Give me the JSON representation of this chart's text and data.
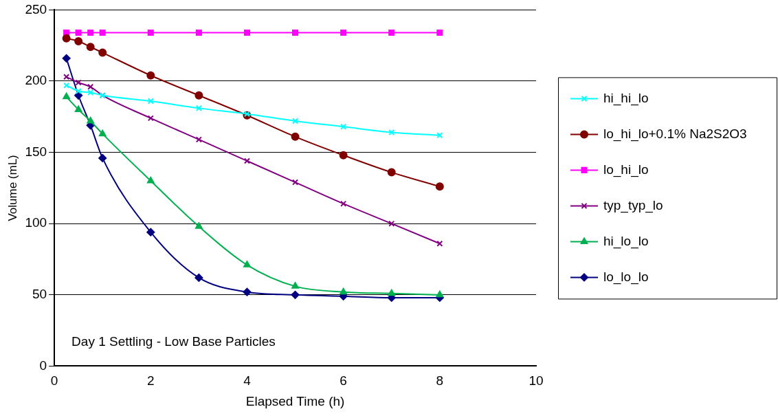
{
  "chart_data": {
    "type": "line",
    "xlabel": "Elapsed Time (h)",
    "ylabel": "Volume (mL)",
    "x": [
      0.25,
      0.5,
      0.75,
      1,
      2,
      3,
      4,
      5,
      6,
      7,
      8
    ],
    "xlim": [
      0,
      10
    ],
    "xticks": [
      0,
      2,
      4,
      6,
      8,
      10
    ],
    "ylim": [
      0,
      250
    ],
    "yticks": [
      0,
      50,
      100,
      150,
      200,
      250
    ],
    "grid": "y",
    "legend": "right",
    "annotations": [
      "Day 1 Settling - Low Base Particles"
    ],
    "series": [
      {
        "name": "hi_hi_lo",
        "color": "#00ffff",
        "marker": "cross",
        "values": [
          197,
          193,
          192,
          190,
          186,
          181,
          177,
          172,
          168,
          164,
          162
        ]
      },
      {
        "name": "lo_hi_lo+0.1% Na2S2O3",
        "color": "#800000",
        "marker": "circle",
        "values": [
          230,
          228,
          224,
          220,
          204,
          190,
          176,
          161,
          148,
          136,
          126
        ]
      },
      {
        "name": "lo_hi_lo",
        "color": "#ff00ff",
        "marker": "square",
        "values": [
          234,
          234,
          234,
          234,
          234,
          234,
          234,
          234,
          234,
          234,
          234
        ]
      },
      {
        "name": "typ_typ_lo",
        "color": "#800080",
        "marker": "cross",
        "values": [
          203,
          199,
          196,
          190,
          174,
          159,
          144,
          129,
          114,
          100,
          86
        ]
      },
      {
        "name": "hi_lo_lo",
        "color": "#00b050",
        "marker": "triangle",
        "values": [
          189,
          180,
          172,
          163,
          130,
          98,
          71,
          56,
          52,
          51,
          50
        ]
      },
      {
        "name": "lo_lo_lo",
        "color": "#000080",
        "marker": "diamond",
        "values": [
          216,
          190,
          169,
          146,
          94,
          62,
          52,
          50,
          49,
          48,
          48
        ]
      }
    ]
  }
}
